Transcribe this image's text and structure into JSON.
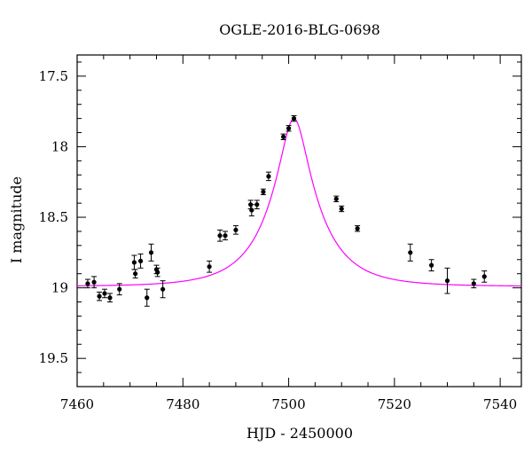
{
  "chart_data": {
    "type": "scatter",
    "title": "OGLE-2016-BLG-0698",
    "xlabel": "HJD - 2450000",
    "ylabel": "I magnitude",
    "xlim": [
      7460,
      7544
    ],
    "ylim": [
      19.7,
      17.35
    ],
    "y_inverted": true,
    "grid": false,
    "x_ticks": [
      "7460",
      "7480",
      "7500",
      "7520",
      "7540"
    ],
    "x_tick_values": [
      7460,
      7480,
      7500,
      7520,
      7540
    ],
    "y_ticks": [
      "17.5",
      "18",
      "18.5",
      "19",
      "19.5"
    ],
    "y_tick_values": [
      17.5,
      18.0,
      18.5,
      19.0,
      19.5
    ],
    "model": {
      "color": "#ff00ff",
      "t0": 7501.0,
      "baseline": 18.99,
      "peak": 17.8,
      "u0": 0.25,
      "tE": 9.5
    },
    "series": [
      {
        "marker_color": "#000000",
        "points": [
          {
            "x": 7462.0,
            "y": 18.97,
            "err": 0.03
          },
          {
            "x": 7463.2,
            "y": 18.96,
            "err": 0.04
          },
          {
            "x": 7464.2,
            "y": 19.06,
            "err": 0.03
          },
          {
            "x": 7465.2,
            "y": 19.04,
            "err": 0.03
          },
          {
            "x": 7466.2,
            "y": 19.07,
            "err": 0.03
          },
          {
            "x": 7468.0,
            "y": 19.01,
            "err": 0.04
          },
          {
            "x": 7470.8,
            "y": 18.82,
            "err": 0.05
          },
          {
            "x": 7471.0,
            "y": 18.9,
            "err": 0.03
          },
          {
            "x": 7472.0,
            "y": 18.81,
            "err": 0.05
          },
          {
            "x": 7473.2,
            "y": 19.07,
            "err": 0.06
          },
          {
            "x": 7474.0,
            "y": 18.75,
            "err": 0.06
          },
          {
            "x": 7475.0,
            "y": 18.87,
            "err": 0.03
          },
          {
            "x": 7475.2,
            "y": 18.89,
            "err": 0.03
          },
          {
            "x": 7476.2,
            "y": 19.01,
            "err": 0.06
          },
          {
            "x": 7485.0,
            "y": 18.85,
            "err": 0.04
          },
          {
            "x": 7487.0,
            "y": 18.63,
            "err": 0.04
          },
          {
            "x": 7488.0,
            "y": 18.63,
            "err": 0.03
          },
          {
            "x": 7490.0,
            "y": 18.59,
            "err": 0.03
          },
          {
            "x": 7492.8,
            "y": 18.41,
            "err": 0.03
          },
          {
            "x": 7493.0,
            "y": 18.45,
            "err": 0.04
          },
          {
            "x": 7494.0,
            "y": 18.41,
            "err": 0.03
          },
          {
            "x": 7495.2,
            "y": 18.32,
            "err": 0.02
          },
          {
            "x": 7496.2,
            "y": 18.21,
            "err": 0.03
          },
          {
            "x": 7499.0,
            "y": 17.93,
            "err": 0.02
          },
          {
            "x": 7500.0,
            "y": 17.87,
            "err": 0.02
          },
          {
            "x": 7501.0,
            "y": 17.8,
            "err": 0.02
          },
          {
            "x": 7509.0,
            "y": 18.37,
            "err": 0.02
          },
          {
            "x": 7510.0,
            "y": 18.44,
            "err": 0.02
          },
          {
            "x": 7513.0,
            "y": 18.58,
            "err": 0.02
          },
          {
            "x": 7523.0,
            "y": 18.75,
            "err": 0.06
          },
          {
            "x": 7527.0,
            "y": 18.84,
            "err": 0.04
          },
          {
            "x": 7530.0,
            "y": 18.95,
            "err": 0.09
          },
          {
            "x": 7535.0,
            "y": 18.97,
            "err": 0.03
          },
          {
            "x": 7537.0,
            "y": 18.92,
            "err": 0.04
          }
        ]
      }
    ]
  }
}
